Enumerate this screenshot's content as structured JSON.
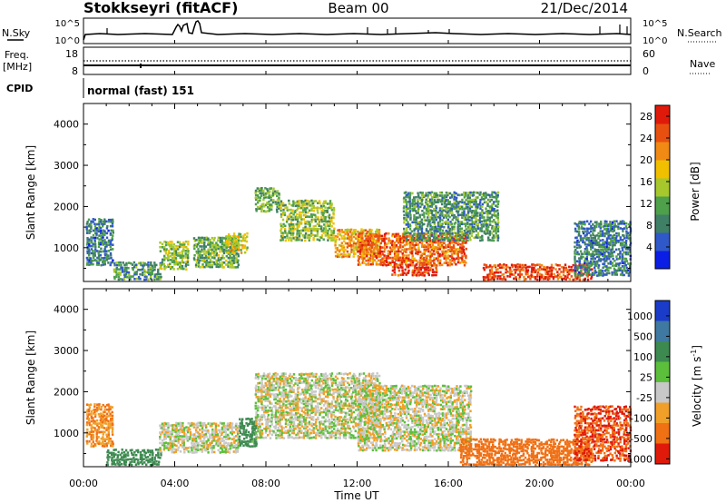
{
  "header": {
    "station": "Stokkseyri (fitACF)",
    "beam": "Beam 00",
    "date": "21/Dec/2014"
  },
  "nsky_panel": {
    "left_label": "N.Sky",
    "right_label": "N.Search",
    "left_ticks": [
      "10^5",
      "10^0"
    ],
    "right_ticks": [
      "10^5",
      "10^0"
    ]
  },
  "freq_panel": {
    "left_label_top": "Freq.",
    "left_label_unit": "[MHz]",
    "right_label": "Nave",
    "left_ticks": [
      "18",
      "8"
    ],
    "right_ticks": [
      "60",
      "0"
    ]
  },
  "cpid_panel": {
    "label": "CPID",
    "text": "normal (fast) 151"
  },
  "chart_data": [
    {
      "type": "heatmap",
      "title": "",
      "quantity": "Power",
      "xlabel": "Time UT",
      "ylabel": "Slant Range [km]",
      "xlim_hours": [
        0,
        24
      ],
      "ylim_km": [
        180,
        4500
      ],
      "x_tick_labels": [
        "00:00",
        "04:00",
        "08:00",
        "12:00",
        "16:00",
        "20:00",
        "00:00"
      ],
      "y_tick_labels": [
        "1000",
        "2000",
        "3000",
        "4000"
      ],
      "y_ticks": [
        1000,
        2000,
        3000,
        4000
      ],
      "colorbar": {
        "label": "Power [dB]",
        "range": [
          0,
          30
        ],
        "ticks": [
          4,
          8,
          12,
          16,
          20,
          24,
          28
        ],
        "tick_labels": [
          "4",
          "8",
          "12",
          "16",
          "20",
          "24",
          "28"
        ],
        "colors": [
          "#0a1ee6",
          "#2f58c8",
          "#3f7f66",
          "#4ea04a",
          "#a6c82c",
          "#f0c000",
          "#f08a14",
          "#e85010",
          "#e01a0a"
        ]
      },
      "features": [
        {
          "t0": 0.1,
          "t1": 1.3,
          "r0": 600,
          "r1": 1750,
          "power": 8
        },
        {
          "t0": 1.3,
          "t1": 3.4,
          "r0": 250,
          "r1": 700,
          "power": 10
        },
        {
          "t0": 3.3,
          "t1": 4.6,
          "r0": 500,
          "r1": 1200,
          "power": 14
        },
        {
          "t0": 4.8,
          "t1": 6.8,
          "r0": 550,
          "r1": 1300,
          "power": 12
        },
        {
          "t0": 6.2,
          "t1": 7.2,
          "r0": 900,
          "r1": 1400,
          "power": 16
        },
        {
          "t0": 7.5,
          "t1": 8.6,
          "r0": 1900,
          "r1": 2500,
          "power": 12
        },
        {
          "t0": 8.6,
          "t1": 11.0,
          "r0": 1200,
          "r1": 2200,
          "power": 14
        },
        {
          "t0": 11.0,
          "t1": 13.0,
          "r0": 800,
          "r1": 1500,
          "power": 20
        },
        {
          "t0": 12.0,
          "t1": 16.8,
          "r0": 600,
          "r1": 1400,
          "power": 24
        },
        {
          "t0": 13.5,
          "t1": 15.5,
          "r0": 350,
          "r1": 650,
          "power": 27
        },
        {
          "t0": 14.0,
          "t1": 18.2,
          "r0": 1200,
          "r1": 2400,
          "power": 10
        },
        {
          "t0": 17.5,
          "t1": 22.3,
          "r0": 250,
          "r1": 650,
          "power": 26
        },
        {
          "t0": 21.5,
          "t1": 24.0,
          "r0": 350,
          "r1": 1700,
          "power": 8
        }
      ]
    },
    {
      "type": "heatmap",
      "title": "",
      "quantity": "Velocity",
      "xlabel": "Time UT",
      "ylabel": "Slant Range [km]",
      "xlim_hours": [
        0,
        24
      ],
      "ylim_km": [
        180,
        4500
      ],
      "x_tick_labels": [
        "00:00",
        "04:00",
        "08:00",
        "12:00",
        "16:00",
        "20:00",
        "00:00"
      ],
      "y_tick_labels": [
        "1000",
        "2000",
        "3000",
        "4000"
      ],
      "y_ticks": [
        1000,
        2000,
        3000,
        4000
      ],
      "colorbar": {
        "label": "Velocity [m s-1]",
        "label_main": "Velocity",
        "label_unit_open": "[m s",
        "label_unit_sup": "-1",
        "label_unit_close": "]",
        "tick_labels": [
          "1000",
          "500",
          "100",
          "25",
          "-25",
          "-100",
          "-500",
          "-1000"
        ],
        "colors": [
          "#1a3cc8",
          "#3f78a0",
          "#3d8a50",
          "#5cbf3c",
          "#c8c8c8",
          "#f0a028",
          "#f07014",
          "#e01a0a"
        ]
      },
      "features": [
        {
          "t0": 0.1,
          "t1": 1.3,
          "r0": 700,
          "r1": 1750,
          "velocity": -100
        },
        {
          "t0": 1.0,
          "t1": 3.4,
          "r0": 250,
          "r1": 650,
          "velocity": 200
        },
        {
          "t0": 3.3,
          "t1": 6.8,
          "r0": 550,
          "r1": 1300,
          "velocity": 0
        },
        {
          "t0": 6.8,
          "t1": 7.6,
          "r0": 700,
          "r1": 1400,
          "velocity": 120
        },
        {
          "t0": 7.5,
          "t1": 13.0,
          "r0": 900,
          "r1": 2500,
          "velocity": 0
        },
        {
          "t0": 12.0,
          "t1": 17.0,
          "r0": 600,
          "r1": 2200,
          "velocity": 0
        },
        {
          "t0": 16.5,
          "t1": 22.3,
          "r0": 250,
          "r1": 900,
          "velocity": -300
        },
        {
          "t0": 21.5,
          "t1": 24.0,
          "r0": 350,
          "r1": 1700,
          "velocity": -500
        }
      ]
    }
  ],
  "xaxis": {
    "label": "Time UT",
    "tick_labels": [
      "00:00",
      "04:00",
      "08:00",
      "12:00",
      "16:00",
      "20:00",
      "00:00"
    ]
  }
}
